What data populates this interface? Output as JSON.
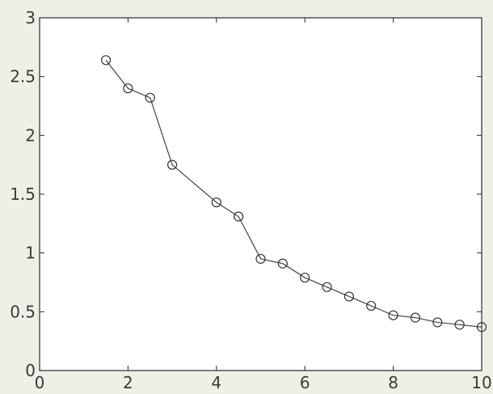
{
  "chart_data": {
    "type": "line",
    "title": "",
    "xlabel": "",
    "ylabel": "",
    "xlim": [
      0,
      10
    ],
    "ylim": [
      0,
      3
    ],
    "grid": false,
    "marker": "open-circle",
    "x_ticks": [
      "0",
      "2",
      "4",
      "6",
      "8",
      "10"
    ],
    "y_ticks": [
      "0",
      "0.5",
      "1",
      "1.5",
      "2",
      "2.5",
      "3"
    ],
    "x_tick_values": [
      0,
      2,
      4,
      6,
      8,
      10
    ],
    "y_tick_values": [
      0,
      0.5,
      1,
      1.5,
      2,
      2.5,
      3
    ],
    "series": [
      {
        "x": [
          1.5,
          2.0,
          2.5,
          3.0,
          4.0,
          4.5,
          5.0,
          5.5,
          6.0,
          6.5,
          7.0,
          7.5,
          8.0,
          8.5,
          9.0,
          9.5,
          10.0
        ],
        "y": [
          2.64,
          2.4,
          2.32,
          1.75,
          1.43,
          1.31,
          0.95,
          0.91,
          0.79,
          0.71,
          0.63,
          0.55,
          0.47,
          0.45,
          0.41,
          0.39,
          0.37
        ]
      }
    ],
    "colors": {
      "background": "#efefe7",
      "plot_area": "#ffffff",
      "axes": "#2a2a2a",
      "line": "#444444",
      "marker": "#333333"
    }
  }
}
